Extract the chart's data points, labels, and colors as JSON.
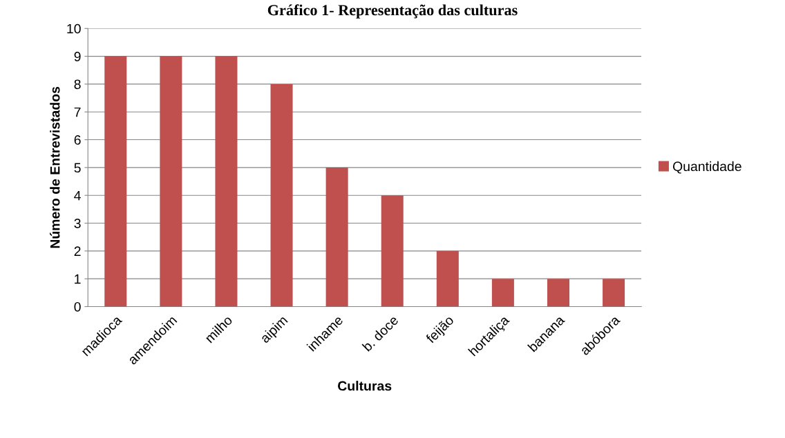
{
  "chart_data": {
    "type": "bar",
    "title": "Gráfico 1- Representação das culturas",
    "xlabel": "Culturas",
    "ylabel": "Número de Entrevistados",
    "categories": [
      "madioca",
      "amendoim",
      "milho",
      "aipim",
      "inhame",
      "b. doce",
      "feijão",
      "hortaliça",
      "banana",
      "abóbora"
    ],
    "series": [
      {
        "name": "Quantidade",
        "color": "#c0504d",
        "values": [
          9,
          9,
          9,
          8,
          5,
          4,
          2,
          1,
          1,
          1
        ]
      }
    ],
    "ylim": [
      0,
      10
    ],
    "yticks": [
      0,
      1,
      2,
      3,
      4,
      5,
      6,
      7,
      8,
      9,
      10
    ],
    "grid": "y",
    "legend": "right"
  }
}
